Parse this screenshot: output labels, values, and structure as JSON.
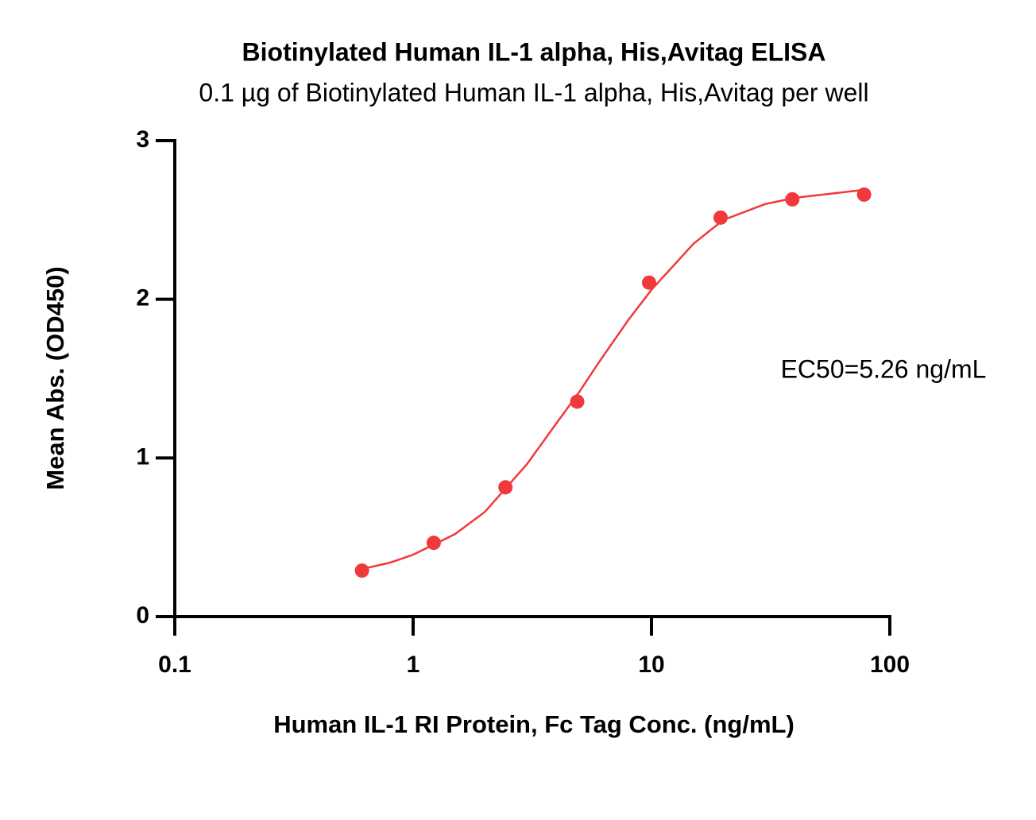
{
  "chart_data": {
    "type": "scatter",
    "title": "Biotinylated Human IL-1 alpha, His,Avitag ELISA",
    "subtitle": "0.1 µg of Biotinylated Human IL-1 alpha, His,Avitag per well",
    "x_label": "Human IL-1 RI Protein, Fc Tag Conc. (ng/mL)",
    "y_label": "Mean Abs. (OD450)",
    "annotation": "EC50=5.26 ng/mL",
    "xscale": "log",
    "xlim": [
      0.1,
      100
    ],
    "xticks": [
      0.1,
      1,
      10,
      100
    ],
    "ylim": [
      0,
      3
    ],
    "yticks": [
      0,
      1,
      2,
      3
    ],
    "points": {
      "color": "#f0393c",
      "x": [
        0.61,
        1.22,
        2.44,
        4.88,
        9.77,
        19.5,
        39,
        78
      ],
      "values": [
        0.29,
        0.465,
        0.815,
        1.355,
        2.105,
        2.515,
        2.63,
        2.66
      ]
    },
    "curve": {
      "color": "#f0393c",
      "x": [
        0.61,
        0.8,
        1,
        1.5,
        2,
        3,
        4,
        5,
        6,
        8,
        10,
        15,
        20,
        30,
        40,
        60,
        78
      ],
      "values": [
        0.3,
        0.34,
        0.39,
        0.52,
        0.66,
        0.96,
        1.22,
        1.42,
        1.6,
        1.87,
        2.06,
        2.35,
        2.5,
        2.6,
        2.64,
        2.67,
        2.69
      ]
    }
  }
}
